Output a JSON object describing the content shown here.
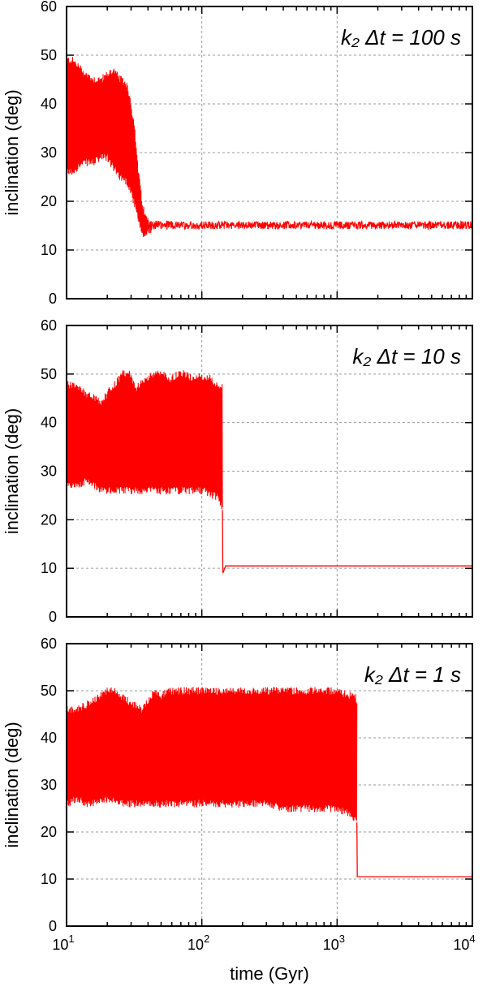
{
  "colors": {
    "series": "#ff0000",
    "grid": "#9a9a9a",
    "axis": "#000000"
  },
  "chart_data": [
    {
      "type": "line",
      "title": "",
      "annotation": "k₂ Δt = 100 s",
      "xlabel": "",
      "ylabel": "inclination (deg)",
      "xscale": "log",
      "xlim": [
        10,
        10000
      ],
      "ylim": [
        0,
        60
      ],
      "yticks": [
        "0",
        "10",
        "20",
        "30",
        "40",
        "50",
        "60"
      ],
      "xticks": [
        10,
        100,
        1000,
        10000
      ],
      "grid": true,
      "series": [
        {
          "x": [
            10,
            11,
            12,
            14,
            16,
            18,
            20,
            22,
            25,
            28,
            30,
            32,
            34,
            36,
            38,
            40,
            45,
            50,
            60,
            80,
            100,
            1000,
            10000
          ],
          "y_upper": [
            49,
            49,
            48,
            46,
            45,
            45,
            46,
            47,
            45,
            44,
            40,
            34,
            26,
            20,
            17,
            16,
            15.5,
            15.3,
            15.2,
            15.1,
            15.1,
            15.1,
            15.1
          ],
          "y_lower": [
            26,
            26,
            27,
            28,
            28,
            29,
            29,
            27,
            25,
            24,
            22,
            19,
            16,
            13,
            13,
            14,
            14.6,
            14.9,
            15.0,
            15.1,
            15.1,
            15.1,
            15.1
          ]
        }
      ]
    },
    {
      "type": "line",
      "title": "",
      "annotation": "k₂ Δt = 10 s",
      "xlabel": "",
      "ylabel": "inclination (deg)",
      "xscale": "log",
      "xlim": [
        10,
        10000
      ],
      "ylim": [
        0,
        60
      ],
      "yticks": [
        "0",
        "10",
        "20",
        "30",
        "40",
        "50",
        "60"
      ],
      "xticks": [
        10,
        100,
        1000,
        10000
      ],
      "grid": true,
      "series": [
        {
          "x": [
            10,
            12,
            14,
            16,
            18,
            20,
            23,
            26,
            29,
            33,
            38,
            44,
            50,
            58,
            66,
            75,
            85,
            95,
            105,
            115,
            125,
            135,
            140,
            142
          ],
          "y_upper": [
            48,
            47,
            46,
            45,
            44,
            46,
            48,
            50,
            50,
            47,
            49,
            50,
            50,
            49,
            50,
            50,
            49,
            50,
            49,
            49,
            48,
            47,
            48,
            47
          ],
          "y_lower": [
            27,
            27,
            28,
            27,
            26,
            26,
            26,
            26,
            26,
            26,
            26,
            26,
            26,
            26,
            26,
            26,
            26,
            26,
            26,
            25,
            25,
            24,
            23,
            22
          ]
        },
        {
          "x": [
            142,
            143,
            150,
            1000,
            10000
          ],
          "y": [
            22,
            9,
            10.5,
            10.5,
            10.5
          ]
        }
      ]
    },
    {
      "type": "line",
      "title": "",
      "annotation": "k₂ Δt = 1 s",
      "xlabel": "time (Gyr)",
      "ylabel": "inclination (deg)",
      "xscale": "log",
      "xlim": [
        10,
        10000
      ],
      "ylim": [
        0,
        60
      ],
      "yticks": [
        "0",
        "10",
        "20",
        "30",
        "40",
        "50",
        "60"
      ],
      "xticks": [
        10,
        100,
        1000,
        10000
      ],
      "grid": true,
      "series": [
        {
          "x": [
            10,
            12,
            14,
            16,
            18,
            20,
            22,
            25,
            28,
            32,
            36,
            40,
            45,
            50,
            60,
            70,
            80,
            100,
            150,
            200,
            300,
            400,
            600,
            800,
            1000,
            1200,
            1350,
            1400
          ],
          "y_upper": [
            46,
            46,
            47,
            48,
            49,
            50,
            50,
            49,
            48,
            47,
            46,
            48,
            50,
            49,
            50,
            50,
            50,
            50,
            50,
            50,
            50,
            50,
            50,
            50,
            50,
            49,
            49,
            48
          ],
          "y_lower": [
            26,
            27,
            26,
            26,
            27,
            27,
            27,
            26,
            26,
            26,
            26,
            26,
            26,
            26,
            26,
            26,
            26,
            26,
            26,
            26,
            26,
            25,
            25,
            25,
            25,
            24,
            23,
            22
          ]
        },
        {
          "x": [
            1400,
            1410,
            1420,
            10000
          ],
          "y": [
            22,
            10.5,
            10.5,
            10.5
          ]
        }
      ]
    }
  ],
  "tick_text": {
    "x": [
      "10",
      "10",
      "10",
      "10"
    ],
    "x_exp": [
      "1",
      "2",
      "3",
      "4"
    ]
  }
}
